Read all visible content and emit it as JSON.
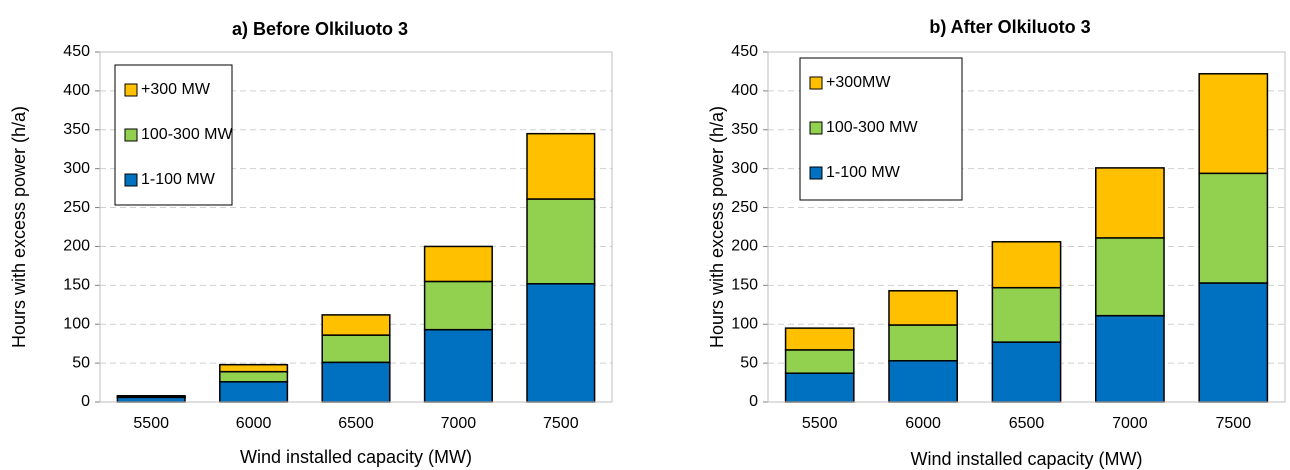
{
  "chart_data": [
    {
      "type": "bar",
      "stacked": true,
      "title": "a) Before Olkiluoto 3",
      "xlabel": "Wind installed capacity (MW)",
      "ylabel": "Hours with excess power (h/a)",
      "categories": [
        "5500",
        "6000",
        "6500",
        "7000",
        "7500"
      ],
      "series": [
        {
          "name": "1-100 MW",
          "color": "#0070c0",
          "values": [
            6,
            26,
            51,
            93,
            152
          ]
        },
        {
          "name": "100-300 MW",
          "color": "#92d050",
          "values": [
            1,
            13,
            35,
            62,
            109
          ]
        },
        {
          "name": "+300 MW",
          "color": "#ffc000",
          "values": [
            1,
            9,
            26,
            45,
            84
          ]
        }
      ],
      "ylim": [
        0,
        450
      ],
      "yticks": [
        0,
        50,
        100,
        150,
        200,
        250,
        300,
        350,
        400,
        450
      ],
      "grid": true,
      "legend": "upper left"
    },
    {
      "type": "bar",
      "stacked": true,
      "title": "b) After Olkiluoto 3",
      "xlabel": "Wind installed capacity (MW)",
      "ylabel": "Hours with excess power (h/a)",
      "categories": [
        "5500",
        "6000",
        "6500",
        "7000",
        "7500"
      ],
      "series": [
        {
          "name": "1-100 MW",
          "color": "#0070c0",
          "values": [
            37,
            53,
            77,
            111,
            153
          ]
        },
        {
          "name": "100-300 MW",
          "color": "#92d050",
          "values": [
            30,
            46,
            70,
            100,
            141
          ]
        },
        {
          "name": "+300MW",
          "color": "#ffc000",
          "values": [
            28,
            44,
            59,
            90,
            128
          ]
        }
      ],
      "ylim": [
        0,
        450
      ],
      "yticks": [
        0,
        50,
        100,
        150,
        200,
        250,
        300,
        350,
        400,
        450
      ],
      "grid": true,
      "legend": "upper left"
    }
  ]
}
